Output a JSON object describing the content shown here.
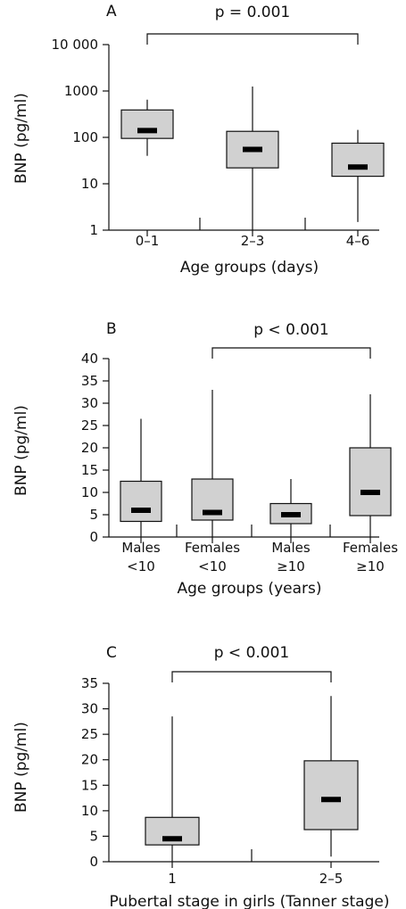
{
  "chart_data": [
    {
      "type": "box",
      "panel_label": "A",
      "ylabel": "BNP (pg/ml)",
      "xlabel": "Age groups (days)",
      "yscale": "log",
      "ylim": [
        1,
        10000
      ],
      "yticks": [
        1,
        10,
        100,
        1000,
        10000
      ],
      "ytick_labels": [
        "1",
        "10",
        "100",
        "1000",
        "10 000"
      ],
      "categories": [
        {
          "lines": [
            "0–1"
          ]
        },
        {
          "lines": [
            "2–3"
          ]
        },
        {
          "lines": [
            "4–6"
          ]
        }
      ],
      "boxes": [
        {
          "min": 40,
          "q1": 95,
          "median": 140,
          "q3": 390,
          "max": 650
        },
        {
          "min": 1,
          "q1": 22,
          "median": 55,
          "q3": 135,
          "max": 1250
        },
        {
          "min": 1.5,
          "q1": 14.5,
          "median": 23,
          "q3": 75,
          "max": 145
        }
      ],
      "significance": {
        "text": "p = 0.001",
        "from": 0,
        "to": 2
      }
    },
    {
      "type": "box",
      "panel_label": "B",
      "ylabel": "BNP (pg/ml)",
      "xlabel": "Age groups (years)",
      "yscale": "linear",
      "ylim": [
        0,
        40
      ],
      "yticks": [
        0,
        5,
        10,
        15,
        20,
        25,
        30,
        35,
        40
      ],
      "ytick_labels": [
        "0",
        "5",
        "10",
        "15",
        "20",
        "25",
        "30",
        "35",
        "40"
      ],
      "categories": [
        {
          "lines": [
            "Males",
            "<10"
          ]
        },
        {
          "lines": [
            "Females",
            "<10"
          ]
        },
        {
          "lines": [
            "Males",
            "≥10"
          ]
        },
        {
          "lines": [
            "Females",
            "≥10"
          ]
        }
      ],
      "boxes": [
        {
          "min": 0,
          "q1": 3.5,
          "median": 6,
          "q3": 12.5,
          "max": 26.5
        },
        {
          "min": 0,
          "q1": 3.8,
          "median": 5.5,
          "q3": 13,
          "max": 33
        },
        {
          "min": 0,
          "q1": 3,
          "median": 5,
          "q3": 7.5,
          "max": 13
        },
        {
          "min": 0,
          "q1": 4.8,
          "median": 10,
          "q3": 20,
          "max": 32
        }
      ],
      "significance": {
        "text": "p < 0.001",
        "from": 1,
        "to": 3
      }
    },
    {
      "type": "box",
      "panel_label": "C",
      "ylabel": "BNP (pg/ml)",
      "xlabel": "Pubertal stage in girls (Tanner stage)",
      "yscale": "linear",
      "ylim": [
        0,
        35
      ],
      "yticks": [
        0,
        5,
        10,
        15,
        20,
        25,
        30,
        35
      ],
      "ytick_labels": [
        "0",
        "5",
        "10",
        "15",
        "20",
        "25",
        "30",
        "35"
      ],
      "categories": [
        {
          "lines": [
            "1"
          ]
        },
        {
          "lines": [
            "2–5"
          ]
        }
      ],
      "boxes": [
        {
          "min": 0,
          "q1": 3.3,
          "median": 4.5,
          "q3": 8.7,
          "max": 28.5
        },
        {
          "min": 1,
          "q1": 6.3,
          "median": 12.2,
          "q3": 19.8,
          "max": 32.5
        }
      ],
      "significance": {
        "text": "p < 0.001",
        "from": 0,
        "to": 1
      }
    }
  ],
  "colors": {
    "box_fill": "#d1d1d1",
    "ink": "#111111",
    "median": "#000000"
  }
}
